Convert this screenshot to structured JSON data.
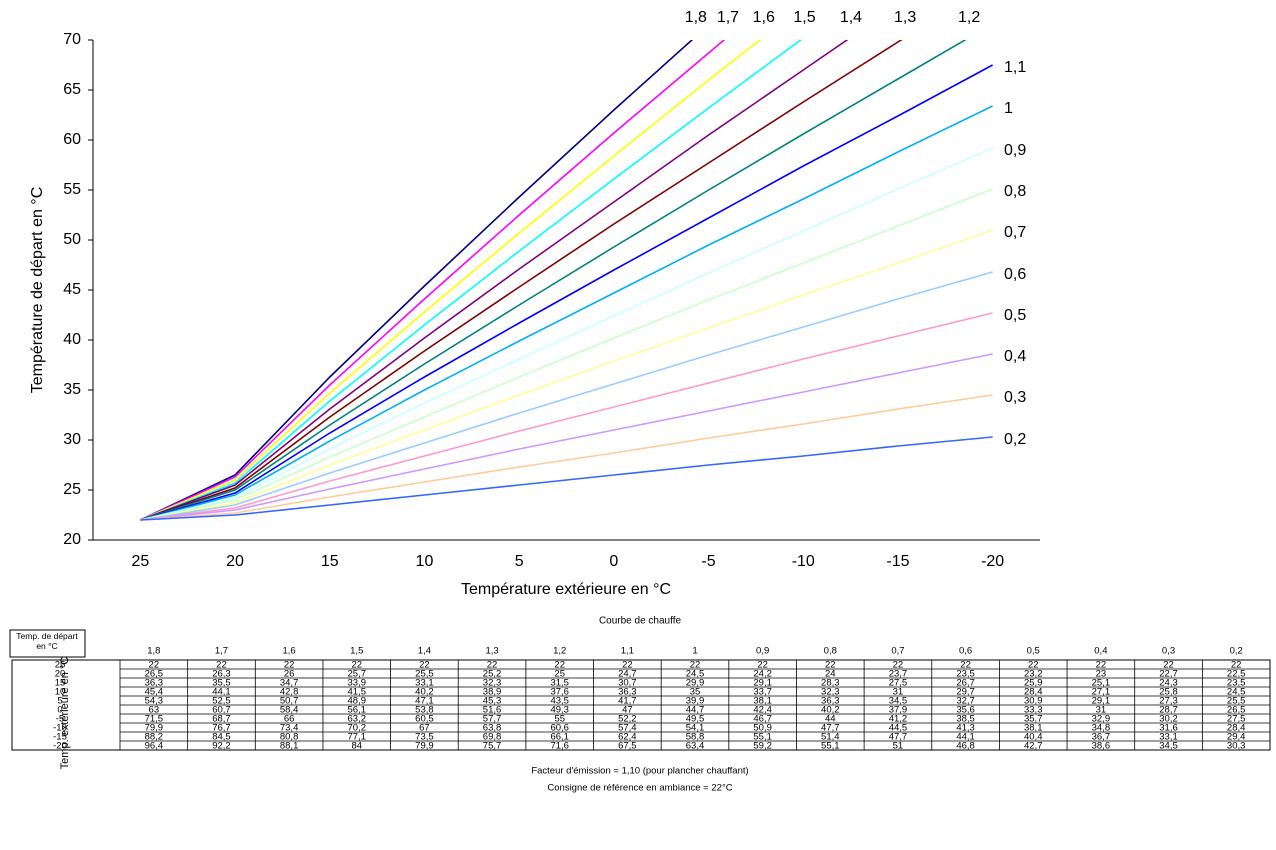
{
  "chart_data": {
    "type": "line",
    "ylabel": "Température de départ en °C",
    "xlabel": "Température extérieure en °C",
    "x": [
      25,
      20,
      15,
      10,
      5,
      0,
      -5,
      -10,
      -15,
      -20
    ],
    "xlim": [
      27.5,
      -22.5
    ],
    "xticks": [
      25,
      20,
      15,
      10,
      5,
      0,
      -5,
      -10,
      -15,
      -20
    ],
    "ylim": [
      20,
      70
    ],
    "yticks": [
      20,
      25,
      30,
      35,
      40,
      45,
      50,
      55,
      60,
      65,
      70
    ],
    "grid": false,
    "series": [
      {
        "name": "1,8",
        "color": "#000080",
        "values": [
          22,
          26.5,
          36.3,
          45.4,
          54.3,
          63,
          71.5,
          79.9,
          88.2,
          96.4
        ],
        "value_labels": [
          "22",
          "26,5",
          "36,3",
          "45,4",
          "54,3",
          "63",
          "71,5",
          "79,9",
          "88,2",
          "96,4"
        ]
      },
      {
        "name": "1,7",
        "color": "#ff00ff",
        "values": [
          22,
          26.3,
          35.5,
          44.1,
          52.5,
          60.7,
          68.7,
          76.7,
          84.5,
          92.2
        ],
        "value_labels": [
          "22",
          "26,3",
          "35,5",
          "44,1",
          "52,5",
          "60,7",
          "68,7",
          "76,7",
          "84,5",
          "92,2"
        ]
      },
      {
        "name": "1,6",
        "color": "#ffff00",
        "values": [
          22,
          26,
          34.7,
          42.8,
          50.7,
          58.4,
          66,
          73.4,
          80.8,
          88.1
        ],
        "value_labels": [
          "22",
          "26",
          "34,7",
          "42,8",
          "50,7",
          "58,4",
          "66",
          "73,4",
          "80,8",
          "88,1"
        ]
      },
      {
        "name": "1,5",
        "color": "#00ffff",
        "values": [
          22,
          25.7,
          33.9,
          41.5,
          48.9,
          56.1,
          63.2,
          70.2,
          77.1,
          84
        ],
        "value_labels": [
          "22",
          "25,7",
          "33,9",
          "41,5",
          "48,9",
          "56,1",
          "63,2",
          "70,2",
          "77,1",
          "84"
        ]
      },
      {
        "name": "1,4",
        "color": "#800080",
        "values": [
          22,
          25.5,
          33.1,
          40.2,
          47.1,
          53.8,
          60.5,
          67,
          73.5,
          79.9
        ],
        "value_labels": [
          "22",
          "25,5",
          "33,1",
          "40,2",
          "47,1",
          "53,8",
          "60,5",
          "67",
          "73,5",
          "79,9"
        ]
      },
      {
        "name": "1,3",
        "color": "#800000",
        "values": [
          22,
          25.2,
          32.3,
          38.9,
          45.3,
          51.6,
          57.7,
          63.8,
          69.8,
          75.7
        ],
        "value_labels": [
          "22",
          "25,2",
          "32,3",
          "38,9",
          "45,3",
          "51,6",
          "57,7",
          "63,8",
          "69,8",
          "75,7"
        ]
      },
      {
        "name": "1,2",
        "color": "#008080",
        "values": [
          22,
          25,
          31.5,
          37.6,
          43.5,
          49.3,
          55,
          60.6,
          66.1,
          71.6
        ],
        "value_labels": [
          "22",
          "25",
          "31,5",
          "37,6",
          "43,5",
          "49,3",
          "55",
          "60,6",
          "66,1",
          "71,6"
        ]
      },
      {
        "name": "1,1",
        "color": "#0000ff",
        "values": [
          22,
          24.7,
          30.7,
          36.3,
          41.7,
          47,
          52.2,
          57.4,
          62.4,
          67.5
        ],
        "value_labels": [
          "22",
          "24,7",
          "30,7",
          "36,3",
          "41,7",
          "47",
          "52,2",
          "57,4",
          "62,4",
          "67,5"
        ]
      },
      {
        "name": "1",
        "color": "#00b0f0",
        "values": [
          22,
          24.5,
          29.9,
          35,
          39.9,
          44.7,
          49.5,
          54.1,
          58.8,
          63.4
        ],
        "value_labels": [
          "22",
          "24,5",
          "29,9",
          "35",
          "39,9",
          "44,7",
          "49,5",
          "54,1",
          "58,8",
          "63,4"
        ]
      },
      {
        "name": "0,9",
        "color": "#ccffff",
        "values": [
          22,
          24.2,
          29.1,
          33.7,
          38.1,
          42.4,
          46.7,
          50.9,
          55.1,
          59.2
        ],
        "value_labels": [
          "22",
          "24,2",
          "29,1",
          "33,7",
          "38,1",
          "42,4",
          "46,7",
          "50,9",
          "55,1",
          "59,2"
        ]
      },
      {
        "name": "0,8",
        "color": "#ccffcc",
        "values": [
          22,
          24,
          28.3,
          32.3,
          36.3,
          40.2,
          44,
          47.7,
          51.4,
          55.1
        ],
        "value_labels": [
          "22",
          "24",
          "28,3",
          "32,3",
          "36,3",
          "40,2",
          "44",
          "47,7",
          "51,4",
          "55,1"
        ]
      },
      {
        "name": "0,7",
        "color": "#ffff99",
        "values": [
          22,
          23.7,
          27.5,
          31,
          34.5,
          37.9,
          41.2,
          44.5,
          47.7,
          51
        ],
        "value_labels": [
          "22",
          "23,7",
          "27,5",
          "31",
          "34,5",
          "37,9",
          "41,2",
          "44,5",
          "47,7",
          "51"
        ]
      },
      {
        "name": "0,6",
        "color": "#99ccff",
        "values": [
          22,
          23.5,
          26.7,
          29.7,
          32.7,
          35.6,
          38.5,
          41.3,
          44.1,
          46.8
        ],
        "value_labels": [
          "22",
          "23,5",
          "26,7",
          "29,7",
          "32,7",
          "35,6",
          "38,5",
          "41,3",
          "44,1",
          "46,8"
        ]
      },
      {
        "name": "0,5",
        "color": "#ff99cc",
        "values": [
          22,
          23.2,
          25.9,
          28.4,
          30.9,
          33.3,
          35.7,
          38.1,
          40.4,
          42.7
        ],
        "value_labels": [
          "22",
          "23,2",
          "25,9",
          "28,4",
          "30,9",
          "33,3",
          "35,7",
          "38,1",
          "40,4",
          "42,7"
        ]
      },
      {
        "name": "0,4",
        "color": "#cc99ff",
        "values": [
          22,
          23,
          25.1,
          27.1,
          29.1,
          31,
          32.9,
          34.8,
          36.7,
          38.6
        ],
        "value_labels": [
          "22",
          "23",
          "25,1",
          "27,1",
          "29,1",
          "31",
          "32,9",
          "34,8",
          "36,7",
          "38,6"
        ]
      },
      {
        "name": "0,3",
        "color": "#ffcc99",
        "values": [
          22,
          22.7,
          24.3,
          25.8,
          27.3,
          28.7,
          30.2,
          31.6,
          33.1,
          34.5
        ],
        "value_labels": [
          "22",
          "22,7",
          "24,3",
          "25,8",
          "27,3",
          "28,7",
          "30,2",
          "31,6",
          "33,1",
          "34,5"
        ]
      },
      {
        "name": "0,2",
        "color": "#3366ff",
        "values": [
          22,
          22.5,
          23.5,
          24.5,
          25.5,
          26.5,
          27.5,
          28.4,
          29.4,
          30.3
        ],
        "value_labels": [
          "22",
          "22,5",
          "23,5",
          "24,5",
          "25,5",
          "26,5",
          "27,5",
          "28,4",
          "29,4",
          "30,3"
        ]
      }
    ]
  },
  "table": {
    "title": "Courbe de chauffe",
    "corner": "Temp. de départ en °C",
    "row_axis": "Temp. extérieure en °C"
  },
  "footer": [
    "Facteur d'émission = 1,10 (pour plancher chauffant)",
    "Consigne de référence en ambiance  = 22°C"
  ]
}
